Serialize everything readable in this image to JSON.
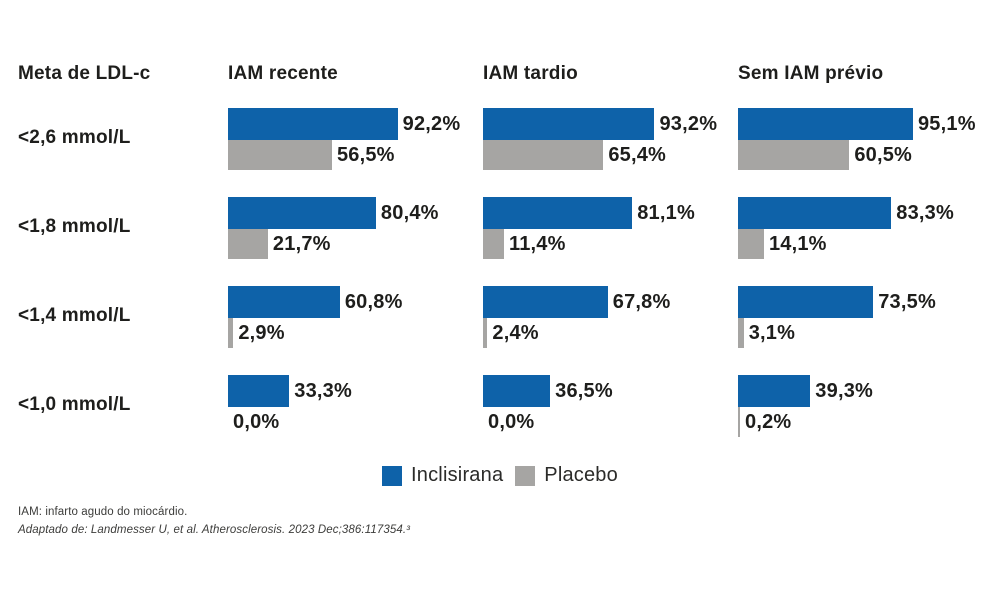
{
  "table": {
    "corner_label": "Meta de LDL-c"
  },
  "chart_data": {
    "type": "bar",
    "orientation": "horizontal",
    "unit": "%",
    "xlim": [
      0,
      100
    ],
    "grid": false,
    "legend_position": "bottom",
    "column_labels": [
      "IAM recente",
      "IAM tardio",
      "Sem IAM prévio"
    ],
    "row_labels": [
      "<2,6 mmol/L",
      "<1,8 mmol/L",
      "<1,4 mmol/L",
      "<1,0 mmol/L"
    ],
    "series": [
      {
        "name": "Inclisirana",
        "color": "#0E62A9",
        "values": [
          [
            92.2,
            93.2,
            95.1
          ],
          [
            80.4,
            81.1,
            83.3
          ],
          [
            60.8,
            67.8,
            73.5
          ],
          [
            33.3,
            36.5,
            39.3
          ]
        ]
      },
      {
        "name": "Placebo",
        "color": "#A6A5A3",
        "values": [
          [
            56.5,
            65.4,
            60.5
          ],
          [
            21.7,
            11.4,
            14.1
          ],
          [
            2.9,
            2.4,
            3.1
          ],
          [
            0.0,
            0.0,
            0.2
          ]
        ]
      }
    ],
    "value_label_format": "comma-decimal-percent"
  },
  "legend": {
    "items": [
      {
        "label": "Inclisirana",
        "color": "#0E62A9"
      },
      {
        "label": "Placebo",
        "color": "#A6A5A3"
      }
    ]
  },
  "footnotes": {
    "abbreviation": "IAM: infarto agudo do miocárdio.",
    "source": "Adaptado de: Landmesser U, et al. Atherosclerosis. 2023 Dec;386:117354.³"
  },
  "colors": {
    "text": "#1E1E1C",
    "inclisirana": "#0E62A9",
    "placebo": "#A6A5A3"
  }
}
